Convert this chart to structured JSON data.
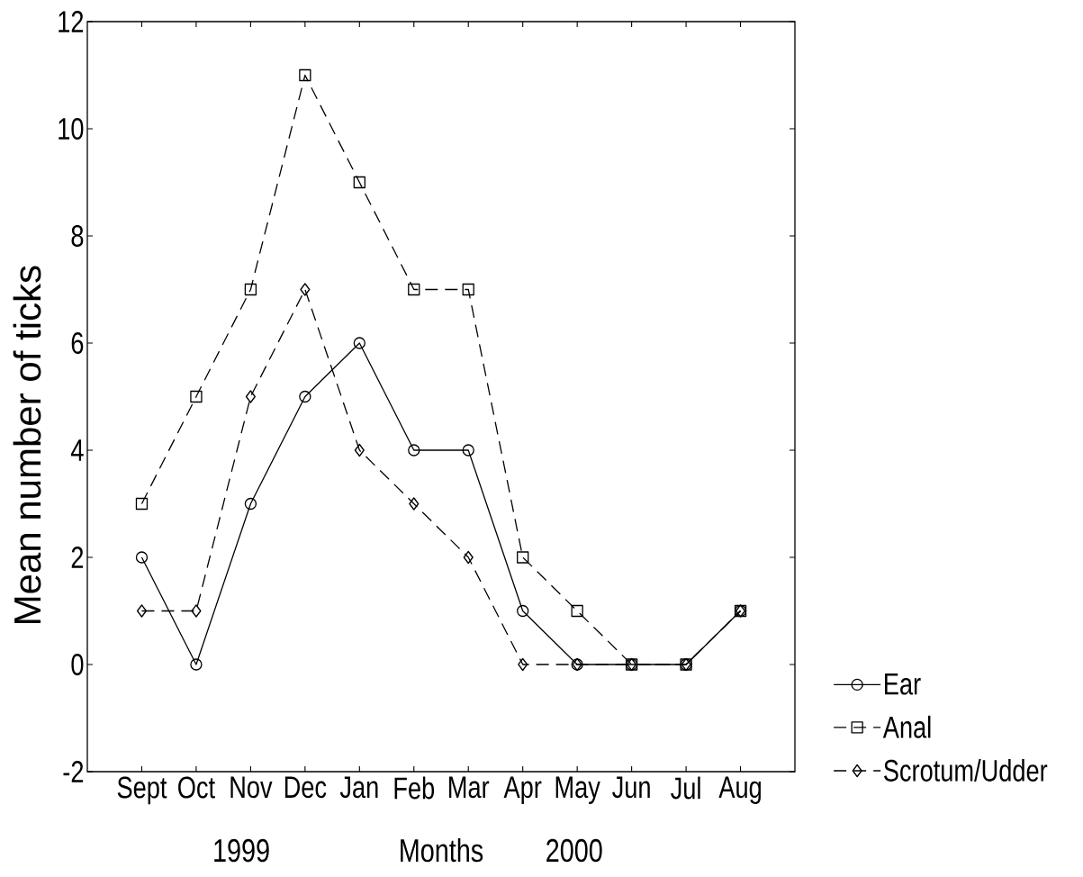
{
  "chart_data": {
    "type": "line",
    "xlabel": "Months",
    "ylabel": "Mean number of ticks",
    "categories": [
      "Sept",
      "Oct",
      "Nov",
      "Dec",
      "Jan",
      "Feb",
      "Mar",
      "Apr",
      "May",
      "Jun",
      "Jul",
      "Aug"
    ],
    "series": [
      {
        "name": "Ear",
        "color": "#000000",
        "marker": "circle",
        "line_style": "solid",
        "values": [
          2,
          0,
          3,
          5,
          6,
          4,
          4,
          1,
          0,
          0,
          0,
          1
        ]
      },
      {
        "name": "Anal",
        "color": "#000000",
        "marker": "square",
        "line_style": "dashed",
        "values": [
          3,
          5,
          7,
          11,
          9,
          7,
          7,
          2,
          1,
          0,
          0,
          1
        ]
      },
      {
        "name": "Scrotum/Udder",
        "color": "#000000",
        "marker": "diamond",
        "line_style": "dashed",
        "values": [
          1,
          1,
          5,
          7,
          4,
          3,
          2,
          0,
          0,
          0,
          0,
          1
        ]
      }
    ],
    "ylim": [
      -2,
      12
    ],
    "yticks": [
      -2,
      0,
      2,
      4,
      6,
      8,
      10,
      12
    ],
    "legend": "bottom right",
    "annotations": [
      "1999",
      "2000"
    ]
  }
}
